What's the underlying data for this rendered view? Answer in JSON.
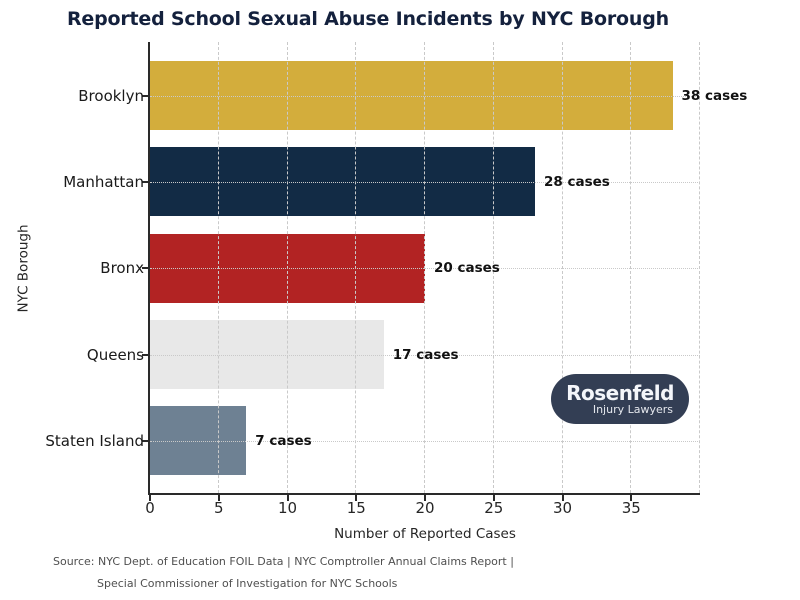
{
  "title": {
    "text": "Reported School Sexual Abuse Incidents by NYC Borough",
    "color": "#14213d"
  },
  "chart_data": {
    "type": "bar",
    "orientation": "horizontal",
    "title": "Reported School Sexual Abuse Incidents by NYC Borough",
    "categories": [
      "Brooklyn",
      "Manhattan",
      "Bronx",
      "Queens",
      "Staten Island"
    ],
    "values": [
      38,
      28,
      20,
      17,
      7
    ],
    "bar_labels": [
      "38 cases",
      "28 cases",
      "20 cases",
      "17 cases",
      "7 cases"
    ],
    "bar_colors": [
      "#d3ad3c",
      "#122b45",
      "#b22323",
      "#e8e8e8",
      "#6e8193"
    ],
    "xlabel": "Number of Reported Cases",
    "ylabel": "NYC Borough",
    "xlim": [
      0,
      40
    ],
    "xticks": [
      0,
      5,
      10,
      15,
      20,
      25,
      30,
      35
    ],
    "grid": {
      "vertical_style": "dashed",
      "horizontal_style": "dotted",
      "color": "#c9c9c9",
      "vertical_positions": [
        5,
        10,
        15,
        20,
        25,
        30,
        35,
        40
      ]
    },
    "legend": "none"
  },
  "logo": {
    "line1": "Rosenfeld",
    "line2": "Injury Lawyers",
    "background": "#333e54",
    "text_color": "#f4f6fa"
  },
  "source": {
    "line1": "Source: NYC Dept. of Education FOIL Data | NYC Comptroller Annual Claims Report |",
    "line2": "Special Commissioner of Investigation for NYC Schools"
  }
}
